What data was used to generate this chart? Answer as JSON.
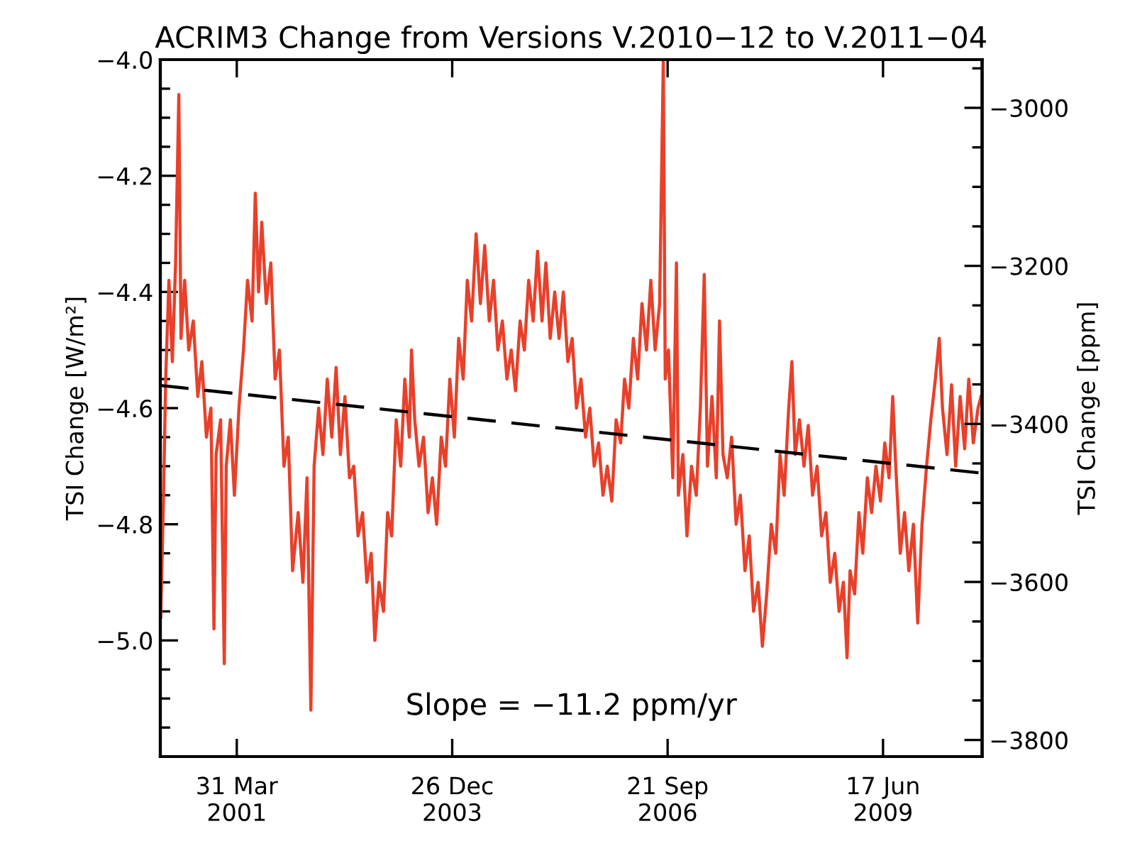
{
  "chart_data": {
    "type": "line",
    "title": "ACRIM3 Change from Versions V.2010−12 to V.2011−04",
    "ylabel": "TSI Change [W/m²]",
    "y2label": "TSI Change [ppm]",
    "annotations": [
      "Slope = −11.2 ppm/yr"
    ],
    "xlim": [
      "2000-04-10",
      "2010-09-20"
    ],
    "xticks": [
      {
        "value": "2001-03-31",
        "label": "31 Mar\n2001"
      },
      {
        "value": "2003-12-26",
        "label": "26 Dec\n2003"
      },
      {
        "value": "2006-09-21",
        "label": "21 Sep\n2006"
      },
      {
        "value": "2009-06-17",
        "label": "17 Jun\n2009"
      }
    ],
    "ylim": [
      -5.2,
      -4.0
    ],
    "yticks": [
      {
        "value": -5.0,
        "label": "−5.0"
      },
      {
        "value": -4.8,
        "label": "−4.8"
      },
      {
        "value": -4.6,
        "label": "−4.6"
      },
      {
        "value": -4.4,
        "label": "−4.4"
      },
      {
        "value": -4.2,
        "label": "−4.2"
      },
      {
        "value": -4.0,
        "label": "−4.0"
      }
    ],
    "y2lim": [
      -3821,
      -2939
    ],
    "y2ticks": [
      {
        "value": -3800,
        "label": "−3800"
      },
      {
        "value": -3600,
        "label": "−3600"
      },
      {
        "value": -3400,
        "label": "−3400"
      },
      {
        "value": -3200,
        "label": "−3200"
      },
      {
        "value": -3000,
        "label": "−3000"
      }
    ],
    "grid": false,
    "legend": false,
    "series": [
      {
        "color": "#e8402a",
        "line_style": "solid",
        "x": [
          "2000-04-12",
          "2000-04-25",
          "2000-05-05",
          "2000-05-20",
          "2000-06-05",
          "2000-06-20",
          "2000-07-05",
          "2000-07-15",
          "2000-08-01",
          "2000-08-20",
          "2000-09-10",
          "2000-10-01",
          "2000-10-20",
          "2000-11-10",
          "2000-12-01",
          "2000-12-15",
          "2000-12-25",
          "2001-01-15",
          "2001-02-01",
          "2001-02-10",
          "2001-03-01",
          "2001-03-20",
          "2001-04-10",
          "2001-05-01",
          "2001-05-20",
          "2001-06-10",
          "2001-06-25",
          "2001-07-10",
          "2001-07-25",
          "2001-08-15",
          "2001-09-05",
          "2001-09-25",
          "2001-10-15",
          "2001-11-05",
          "2001-11-25",
          "2001-12-15",
          "2002-01-10",
          "2002-02-01",
          "2002-02-20",
          "2002-03-10",
          "2002-03-25",
          "2002-04-15",
          "2002-05-05",
          "2002-05-25",
          "2002-06-15",
          "2002-07-05",
          "2002-07-25",
          "2002-08-15",
          "2002-09-05",
          "2002-09-25",
          "2002-10-15",
          "2002-11-05",
          "2002-11-25",
          "2002-12-15",
          "2003-01-01",
          "2003-01-20",
          "2003-02-10",
          "2003-03-01",
          "2003-03-20",
          "2003-04-10",
          "2003-05-01",
          "2003-05-20",
          "2003-06-10",
          "2003-06-20",
          "2003-07-05",
          "2003-07-25",
          "2003-08-15",
          "2003-09-05",
          "2003-09-25",
          "2003-10-15",
          "2003-11-05",
          "2003-11-25",
          "2003-12-15",
          "2004-01-05",
          "2004-01-25",
          "2004-02-15",
          "2004-03-05",
          "2004-03-25",
          "2004-04-15",
          "2004-05-05",
          "2004-05-25",
          "2004-06-15",
          "2004-07-05",
          "2004-07-25",
          "2004-08-15",
          "2004-09-05",
          "2004-09-25",
          "2004-10-15",
          "2004-11-05",
          "2004-11-25",
          "2004-12-15",
          "2005-01-05",
          "2005-01-25",
          "2005-02-15",
          "2005-03-05",
          "2005-03-25",
          "2005-04-15",
          "2005-05-05",
          "2005-05-25",
          "2005-06-15",
          "2005-07-05",
          "2005-07-25",
          "2005-08-15",
          "2005-09-05",
          "2005-09-25",
          "2005-10-15",
          "2005-11-05",
          "2005-11-25",
          "2005-12-15",
          "2006-01-05",
          "2006-01-25",
          "2006-02-15",
          "2006-03-05",
          "2006-03-25",
          "2006-04-15",
          "2006-05-05",
          "2006-05-25",
          "2006-06-15",
          "2006-07-05",
          "2006-07-25",
          "2006-08-15",
          "2006-09-01",
          "2006-09-10",
          "2006-09-25",
          "2006-10-15",
          "2006-11-01",
          "2006-11-10",
          "2006-12-01",
          "2006-12-20",
          "2007-01-10",
          "2007-02-01",
          "2007-02-20",
          "2007-03-10",
          "2007-03-25",
          "2007-04-15",
          "2007-05-05",
          "2007-05-20",
          "2007-06-05",
          "2007-06-25",
          "2007-07-15",
          "2007-08-05",
          "2007-08-25",
          "2007-09-15",
          "2007-10-05",
          "2007-10-25",
          "2007-11-15",
          "2007-12-05",
          "2007-12-25",
          "2008-01-15",
          "2008-02-05",
          "2008-02-25",
          "2008-03-15",
          "2008-04-05",
          "2008-04-20",
          "2008-05-05",
          "2008-05-25",
          "2008-06-15",
          "2008-07-05",
          "2008-07-25",
          "2008-08-15",
          "2008-09-05",
          "2008-09-25",
          "2008-10-15",
          "2008-11-05",
          "2008-11-25",
          "2008-12-15",
          "2009-01-01",
          "2009-01-15",
          "2009-02-05",
          "2009-02-25",
          "2009-03-15",
          "2009-04-05",
          "2009-04-25",
          "2009-05-15",
          "2009-06-05",
          "2009-06-25",
          "2009-07-15",
          "2009-08-01",
          "2009-08-15",
          "2009-09-05",
          "2009-09-25",
          "2009-10-15",
          "2009-11-05",
          "2009-11-25",
          "2009-12-15",
          "2010-01-05",
          "2010-01-25",
          "2010-02-15",
          "2010-03-05",
          "2010-03-20",
          "2010-04-10",
          "2010-05-01",
          "2010-05-20",
          "2010-06-10",
          "2010-07-01",
          "2010-07-20",
          "2010-08-10",
          "2010-09-01",
          "2010-09-15"
        ],
        "values": [
          -4.96,
          -4.75,
          -4.55,
          -4.38,
          -4.52,
          -4.35,
          -4.06,
          -4.48,
          -4.38,
          -4.5,
          -4.45,
          -4.58,
          -4.52,
          -4.65,
          -4.6,
          -4.98,
          -4.68,
          -4.62,
          -5.04,
          -4.7,
          -4.62,
          -4.75,
          -4.6,
          -4.5,
          -4.38,
          -4.45,
          -4.23,
          -4.4,
          -4.28,
          -4.42,
          -4.35,
          -4.55,
          -4.5,
          -4.7,
          -4.65,
          -4.88,
          -4.78,
          -4.9,
          -4.72,
          -5.12,
          -4.7,
          -4.6,
          -4.68,
          -4.55,
          -4.65,
          -4.53,
          -4.68,
          -4.58,
          -4.72,
          -4.7,
          -4.82,
          -4.78,
          -4.9,
          -4.85,
          -5.0,
          -4.9,
          -4.95,
          -4.78,
          -4.82,
          -4.62,
          -4.7,
          -4.55,
          -4.65,
          -4.5,
          -4.62,
          -4.7,
          -4.65,
          -4.78,
          -4.72,
          -4.8,
          -4.65,
          -4.7,
          -4.55,
          -4.65,
          -4.48,
          -4.55,
          -4.38,
          -4.45,
          -4.3,
          -4.42,
          -4.32,
          -4.45,
          -4.38,
          -4.5,
          -4.45,
          -4.55,
          -4.5,
          -4.57,
          -4.45,
          -4.5,
          -4.38,
          -4.45,
          -4.33,
          -4.45,
          -4.35,
          -4.48,
          -4.4,
          -4.48,
          -4.4,
          -4.52,
          -4.48,
          -4.6,
          -4.55,
          -4.65,
          -4.6,
          -4.7,
          -4.66,
          -4.75,
          -4.7,
          -4.76,
          -4.62,
          -4.66,
          -4.55,
          -4.6,
          -4.48,
          -4.55,
          -4.42,
          -4.5,
          -4.38,
          -4.5,
          -4.42,
          -4.0,
          -4.55,
          -4.5,
          -4.72,
          -4.35,
          -4.75,
          -4.68,
          -4.82,
          -4.7,
          -4.75,
          -4.6,
          -4.37,
          -4.7,
          -4.58,
          -4.72,
          -4.45,
          -4.68,
          -4.72,
          -4.65,
          -4.8,
          -4.75,
          -4.88,
          -4.82,
          -4.95,
          -4.9,
          -5.01,
          -4.92,
          -4.8,
          -4.85,
          -4.68,
          -4.75,
          -4.6,
          -4.52,
          -4.68,
          -4.62,
          -4.7,
          -4.63,
          -4.75,
          -4.7,
          -4.82,
          -4.78,
          -4.9,
          -4.85,
          -4.95,
          -4.9,
          -5.03,
          -4.88,
          -4.92,
          -4.78,
          -4.85,
          -4.72,
          -4.78,
          -4.7,
          -4.76,
          -4.66,
          -4.72,
          -4.58,
          -4.7,
          -4.85,
          -4.78,
          -4.88,
          -4.8,
          -4.97,
          -4.8,
          -4.7,
          -4.62,
          -4.55,
          -4.48,
          -4.6,
          -4.68,
          -4.56,
          -4.7,
          -4.58,
          -4.67,
          -4.55,
          -4.66,
          -4.6,
          -4.58
        ]
      },
      {
        "color": "#000000",
        "line_style": "dashed",
        "x": [
          "2000-04-10",
          "2010-09-20"
        ],
        "values": [
          -4.561,
          -4.712
        ]
      }
    ]
  }
}
